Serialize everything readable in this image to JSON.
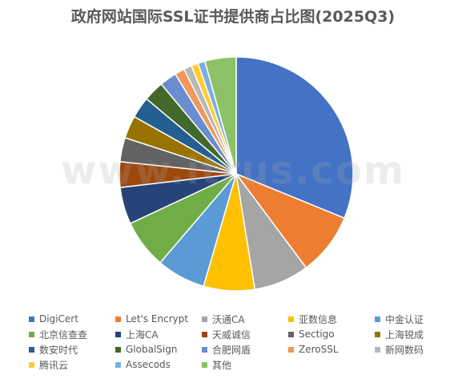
{
  "chart_data": {
    "type": "pie",
    "title": "政府网站国际SSL证书提供商占比图(2025Q3)",
    "watermark": "www.itrus.com",
    "legend_position": "bottom",
    "slices": [
      {
        "name": "DigiCert",
        "value": 31.8,
        "color": "#4472C4"
      },
      {
        "name": "Let's Encrypt",
        "value": 8.8,
        "color": "#ED7D31"
      },
      {
        "name": "沃通CA",
        "value": 7.8,
        "color": "#A5A5A5"
      },
      {
        "name": "亚数信息",
        "value": 7.2,
        "color": "#FFC000"
      },
      {
        "name": "中金认证",
        "value": 6.9,
        "color": "#5B9BD5"
      },
      {
        "name": "北京信查查",
        "value": 6.9,
        "color": "#70AD47"
      },
      {
        "name": "上海CA",
        "value": 5.2,
        "color": "#264478"
      },
      {
        "name": "天威诚信",
        "value": 3.6,
        "color": "#9E480E"
      },
      {
        "name": "Sectigo",
        "value": 3.4,
        "color": "#636363"
      },
      {
        "name": "上海锐成",
        "value": 3.2,
        "color": "#997300"
      },
      {
        "name": "数安时代",
        "value": 3.0,
        "color": "#255E91"
      },
      {
        "name": "GlobalSign",
        "value": 2.9,
        "color": "#43682B"
      },
      {
        "name": "合肥网盾",
        "value": 2.4,
        "color": "#698ED0"
      },
      {
        "name": "ZeroSSL",
        "value": 1.4,
        "color": "#F1975A"
      },
      {
        "name": "新网数码",
        "value": 1.1,
        "color": "#B7B7B7"
      },
      {
        "name": "腾讯云",
        "value": 1.0,
        "color": "#FFCD33"
      },
      {
        "name": "Assecods",
        "value": 1.0,
        "color": "#7CAFDD"
      },
      {
        "name": "其他",
        "value": 4.4,
        "color": "#8CC168"
      }
    ]
  }
}
